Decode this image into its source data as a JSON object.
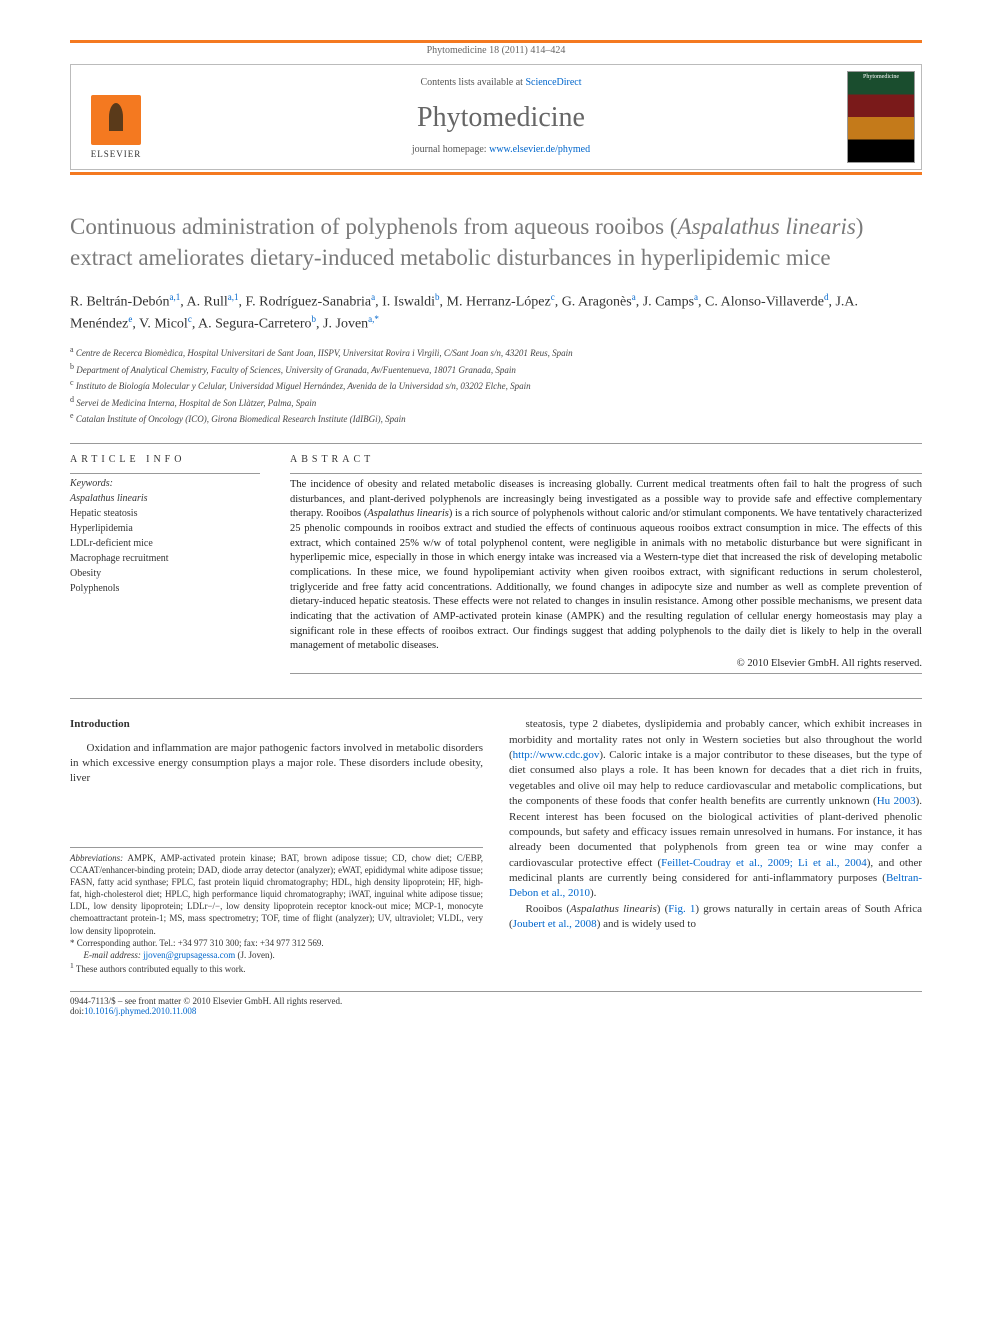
{
  "header": {
    "citation": "Phytomedicine 18 (2011) 414–424",
    "contents_prefix": "Contents lists available at ",
    "contents_link": "ScienceDirect",
    "journal": "Phytomedicine",
    "homepage_prefix": "journal homepage: ",
    "homepage_url": "www.elsevier.de/phymed",
    "publisher_logo_label": "ELSEVIER"
  },
  "title": "Continuous administration of polyphenols from aqueous rooibos (Aspalathus linearis) extract ameliorates dietary-induced metabolic disturbances in hyperlipidemic mice",
  "authors_html": "R. Beltrán-Debón<sup>a,1</sup>, A. Rull<sup>a,1</sup>, F. Rodríguez-Sanabria<sup>a</sup>, I. Iswaldi<sup>b</sup>, M. Herranz-López<sup>c</sup>, G. Aragonès<sup>a</sup>, J. Camps<sup>a</sup>, C. Alonso-Villaverde<sup>d</sup>, J.A. Menéndez<sup>e</sup>, V. Micol<sup>c</sup>, A. Segura-Carretero<sup>b</sup>, J. Joven<sup>a,*</sup>",
  "affiliations": [
    {
      "key": "a",
      "text": "Centre de Recerca Biomèdica, Hospital Universitari de Sant Joan, IISPV, Universitat Rovira i Virgili, C/Sant Joan s/n, 43201 Reus, Spain"
    },
    {
      "key": "b",
      "text": "Department of Analytical Chemistry, Faculty of Sciences, University of Granada, Av/Fuentenueva, 18071 Granada, Spain"
    },
    {
      "key": "c",
      "text": "Instituto de Biología Molecular y Celular, Universidad Miguel Hernández, Avenida de la Universidad s/n, 03202 Elche, Spain"
    },
    {
      "key": "d",
      "text": "Servei de Medicina Interna, Hospital de Son Llàtzer, Palma, Spain"
    },
    {
      "key": "e",
      "text": "Catalan Institute of Oncology (ICO), Girona Biomedical Research Institute (IdIBGi), Spain"
    }
  ],
  "article_info": {
    "label": "ARTICLE INFO",
    "keywords_label": "Keywords:",
    "keywords": [
      "Aspalathus linearis",
      "Hepatic steatosis",
      "Hyperlipidemia",
      "LDLr-deficient mice",
      "Macrophage recruitment",
      "Obesity",
      "Polyphenols"
    ]
  },
  "abstract": {
    "label": "ABSTRACT",
    "text": "The incidence of obesity and related metabolic diseases is increasing globally. Current medical treatments often fail to halt the progress of such disturbances, and plant-derived polyphenols are increasingly being investigated as a possible way to provide safe and effective complementary therapy. Rooibos (Aspalathus linearis) is a rich source of polyphenols without caloric and/or stimulant components. We have tentatively characterized 25 phenolic compounds in rooibos extract and studied the effects of continuous aqueous rooibos extract consumption in mice. The effects of this extract, which contained 25% w/w of total polyphenol content, were negligible in animals with no metabolic disturbance but were significant in hyperlipemic mice, especially in those in which energy intake was increased via a Western-type diet that increased the risk of developing metabolic complications. In these mice, we found hypolipemiant activity when given rooibos extract, with significant reductions in serum cholesterol, triglyceride and free fatty acid concentrations. Additionally, we found changes in adipocyte size and number as well as complete prevention of dietary-induced hepatic steatosis. These effects were not related to changes in insulin resistance. Among other possible mechanisms, we present data indicating that the activation of AMP-activated protein kinase (AMPK) and the resulting regulation of cellular energy homeostasis may play a significant role in these effects of rooibos extract. Our findings suggest that adding polyphenols to the daily diet is likely to help in the overall management of metabolic diseases.",
    "copyright": "© 2010 Elsevier GmbH. All rights reserved."
  },
  "body": {
    "intro_heading": "Introduction",
    "col1_p1": "Oxidation and inflammation are major pathogenic factors involved in metabolic disorders in which excessive energy consumption plays a major role. These disorders include obesity, liver",
    "col2_p1_html": "steatosis, type 2 diabetes, dyslipidemia and probably cancer, which exhibit increases in morbidity and mortality rates not only in Western societies but also throughout the world (<a href=\"#\" data-name=\"link-cdc\" data-interactable=\"true\">http://www.cdc.gov</a>). Caloric intake is a major contributor to these diseases, but the type of diet consumed also plays a role. It has been known for decades that a diet rich in fruits, vegetables and olive oil may help to reduce cardiovascular and metabolic complications, but the components of these foods that confer health benefits are currently unknown (<a href=\"#\" data-name=\"cite-hu-2003\" data-interactable=\"true\">Hu 2003</a>). Recent interest has been focused on the biological activities of plant-derived phenolic compounds, but safety and efficacy issues remain unresolved in humans. For instance, it has already been documented that polyphenols from green tea or wine may confer a cardiovascular protective effect (<a href=\"#\" data-name=\"cite-feillet-2009\" data-interactable=\"true\">Feillet-Coudray et al., 2009; Li et al., 2004</a>), and other medicinal plants are currently being considered for anti-inflammatory purposes (<a href=\"#\" data-name=\"cite-beltran-2010\" data-interactable=\"true\">Beltran-Debon et al., 2010</a>).",
    "col2_p2_html": "Rooibos (<em>Aspalathus linearis</em>) (<a href=\"#\" data-name=\"link-fig1\" data-interactable=\"true\">Fig. 1</a>) grows naturally in certain areas of South Africa (<a href=\"#\" data-name=\"cite-joubert-2008\" data-interactable=\"true\">Joubert et al., 2008</a>) and is widely used to"
  },
  "footnotes": {
    "abbrev_label": "Abbreviations:",
    "abbrev_text": " AMPK, AMP-activated protein kinase; BAT, brown adipose tissue; CD, chow diet; C/EBP, CCAAT/enhancer-binding protein; DAD, diode array detector (analyzer); eWAT, epididymal white adipose tissue; FASN, fatty acid synthase; FPLC, fast protein liquid chromatography; HDL, high density lipoprotein; HF, high-fat, high-cholesterol diet; HPLC, high performance liquid chromatography; iWAT, inguinal white adipose tissue; LDL, low density lipoprotein; LDLr−/−, low density lipoprotein receptor knock-out mice; MCP-1, monocyte chemoattractant protein-1; MS, mass spectrometry; TOF, time of flight (analyzer); UV, ultraviolet; VLDL, very low density lipoprotein.",
    "corr_marker": "*",
    "corr_text": " Corresponding author. Tel.: +34 977 310 300; fax: +34 977 312 569.",
    "email_label": "E-mail address:",
    "email": "jjoven@grupsagessa.com",
    "email_person": " (J. Joven).",
    "note1_marker": "1",
    "note1_text": " These authors contributed equally to this work."
  },
  "bottom": {
    "issn_line": "0944-7113/$ – see front matter © 2010 Elsevier GmbH. All rights reserved.",
    "doi_prefix": "doi:",
    "doi": "10.1016/j.phymed.2010.11.008"
  },
  "colors": {
    "accent_orange": "#f47920",
    "link_blue": "#0066cc",
    "title_gray": "#7a7a7a",
    "rule_gray": "#999999"
  }
}
